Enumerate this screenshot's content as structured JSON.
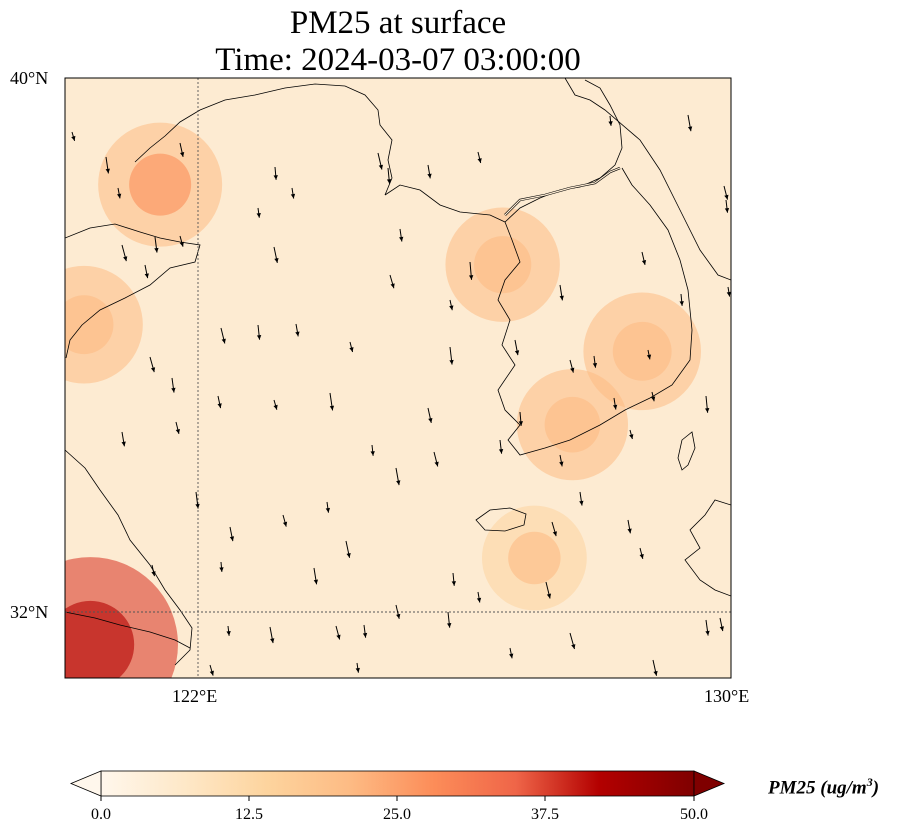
{
  "title": {
    "line1": "PM25 at surface",
    "line2": "Time: 2024-03-07 03:00:00"
  },
  "map": {
    "extent": {
      "lon_min": 119.5,
      "lon_max": 130.0,
      "lat_min": 31.0,
      "lat_max": 40.0
    },
    "lat_ticks": [
      {
        "value": 40,
        "label": "40°N"
      },
      {
        "value": 32,
        "label": "32°N"
      }
    ],
    "lon_ticks": [
      {
        "value": 122,
        "label": "122°E"
      },
      {
        "value": 130,
        "label": "130°E"
      }
    ],
    "gridlines": {
      "lat": [
        32
      ],
      "lon": [
        122
      ]
    },
    "field": "PM25",
    "field_hotspots_ug_m3": [
      {
        "lon": 119.9,
        "lat": 31.5,
        "value": 36
      },
      {
        "lon": 121.0,
        "lat": 38.4,
        "value": 20
      },
      {
        "lon": 119.8,
        "lat": 36.3,
        "value": 18
      },
      {
        "lon": 126.4,
        "lat": 37.2,
        "value": 17
      },
      {
        "lon": 128.6,
        "lat": 35.9,
        "value": 18
      },
      {
        "lon": 127.5,
        "lat": 34.8,
        "value": 16
      },
      {
        "lon": 126.9,
        "lat": 32.8,
        "value": 14
      }
    ],
    "background_value_ug_m3": 4,
    "wind_vectors": "southeast-pointing arrows across Yellow Sea and Korea"
  },
  "colorbar": {
    "label": "PM25 (ug/m",
    "label_sup": "3",
    "label_close": ")",
    "min": 0.0,
    "max": 50.0,
    "ticks": [
      "0.0",
      "12.5",
      "25.0",
      "37.5",
      "50.0"
    ],
    "colormap": "OrRd",
    "colors": [
      "#fff7ec",
      "#fee8c8",
      "#fdd49e",
      "#fdbb84",
      "#fc8d59",
      "#ef6548",
      "#d7301f",
      "#b30000",
      "#7f0000"
    ]
  }
}
